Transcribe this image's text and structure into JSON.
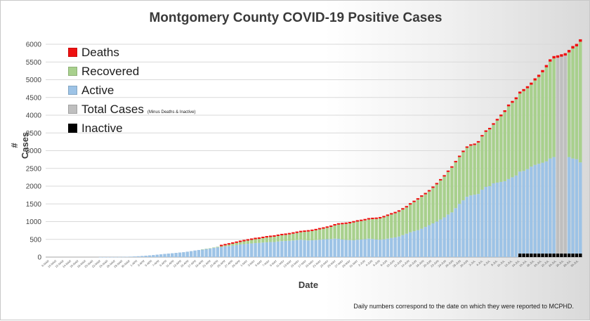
{
  "chart_data": {
    "type": "bar",
    "stacked": true,
    "title": "Montgomery County COVID-19 Positive Cases",
    "xlabel": "Date",
    "ylabel": "# Cases",
    "ylim": [
      0,
      6000
    ],
    "yticks": [
      "0",
      "500",
      "1000",
      "1500",
      "2000",
      "2500",
      "3000",
      "3500",
      "4000",
      "4500",
      "5000",
      "5500",
      "6000"
    ],
    "grid": true,
    "legend_position": "top-left",
    "footnote": "Daily numbers correspond to the date on which they were reported to MCPHD.",
    "legend": [
      {
        "name": "Deaths",
        "color": "#ee1111"
      },
      {
        "name": "Recovered",
        "color": "#a8d08d"
      },
      {
        "name": "Active",
        "color": "#9dc3e6"
      },
      {
        "name": "Total Cases",
        "note": "(Minus Deaths & Inactive)",
        "color": "#bfbfbf"
      },
      {
        "name": "Inactive",
        "color": "#000000"
      }
    ],
    "category_labels": [
      "6-MAR",
      "10-MAR",
      "12-MAR",
      "14-MAR",
      "16-MAR",
      "18-MAR",
      "20-MAR",
      "22-MAR",
      "24-MAR",
      "26-MAR",
      "28-MAR",
      "30-MAR",
      "1-APR",
      "3-APR",
      "5-APR",
      "7-APR",
      "9-APR",
      "11-APR",
      "13-APR",
      "15-APR",
      "17-APR",
      "19-APR",
      "21-APR",
      "23-APR",
      "25-APR",
      "27-APR",
      "29-APR",
      "1-MAY",
      "3-MAY",
      "5-MAY",
      "7-MAY",
      "9-MAY",
      "11-MAY",
      "13-MAY",
      "15-MAY",
      "17-MAY",
      "19-MAY",
      "21-MAY",
      "23-MAY",
      "25-MAY",
      "27-MAY",
      "29-MAY",
      "31-MAY",
      "2-JUN",
      "4-JUN",
      "6-JUN",
      "8-JUN",
      "10-JUN",
      "12-JUN",
      "14-JUN",
      "16-JUN",
      "18-JUN",
      "20-JUN",
      "22-JUN",
      "24-JUN",
      "26-JUN",
      "28-JUN",
      "30-JUN",
      "2-JUL",
      "4-JUL",
      "6-JUL",
      "8-JUL",
      "10-JUL",
      "12-JUL",
      "14-JUL",
      "16-JUL",
      "18-JUL",
      "20-JUL",
      "22-JUL",
      "24-JUL",
      "26-JUL",
      "28-JUL",
      "30-JUL"
    ],
    "series": [
      {
        "name": "Active",
        "values": [
          0,
          0,
          0,
          0,
          0,
          0,
          0,
          0,
          0,
          0,
          0,
          0,
          0,
          0,
          1,
          1,
          2,
          2,
          3,
          4,
          6,
          9,
          13,
          18,
          24,
          31,
          39,
          48,
          57,
          68,
          78,
          89,
          99,
          108,
          118,
          128,
          138,
          152,
          168,
          185,
          200,
          215,
          230,
          240,
          260,
          275,
          285,
          300,
          312,
          325,
          340,
          355,
          365,
          375,
          385,
          395,
          400,
          410,
          418,
          425,
          425,
          440,
          450,
          455,
          460,
          470,
          480,
          490,
          480,
          470,
          475,
          480,
          490,
          500,
          505,
          510,
          520,
          515,
          495,
          485,
          480,
          475,
          490,
          495,
          505,
          520,
          510,
          495,
          490,
          500,
          520,
          540,
          555,
          580,
          620,
          660,
          700,
          730,
          760,
          800,
          850,
          900,
          950,
          1000,
          1060,
          1120,
          1200,
          1260,
          1380,
          1500,
          1600,
          1700,
          1740,
          1760,
          1780,
          1900,
          1980,
          2000,
          2080,
          2100,
          2120,
          2140,
          2200,
          2250,
          2300,
          2310,
          2330,
          2380,
          2450,
          2500,
          2530,
          2560,
          2600,
          2680,
          2720,
          0,
          0,
          0,
          2720,
          2680,
          2660,
          2570
        ]
      },
      {
        "name": "Recovered",
        "values": [
          0,
          0,
          0,
          0,
          0,
          0,
          0,
          0,
          0,
          0,
          0,
          0,
          0,
          0,
          0,
          0,
          0,
          0,
          0,
          0,
          0,
          0,
          0,
          0,
          0,
          0,
          0,
          0,
          0,
          0,
          0,
          0,
          0,
          0,
          0,
          0,
          0,
          0,
          0,
          0,
          0,
          2,
          4,
          8,
          12,
          16,
          22,
          30,
          40,
          50,
          60,
          70,
          80,
          90,
          100,
          110,
          115,
          125,
          135,
          140,
          150,
          155,
          165,
          170,
          180,
          190,
          200,
          210,
          230,
          250,
          260,
          275,
          290,
          300,
          320,
          340,
          370,
          400,
          430,
          450,
          470,
          500,
          510,
          520,
          530,
          540,
          560,
          580,
          600,
          620,
          640,
          660,
          680,
          700,
          720,
          740,
          780,
          820,
          860,
          900,
          920,
          950,
          1000,
          1050,
          1100,
          1150,
          1200,
          1260,
          1290,
          1320,
          1360,
          1380,
          1400,
          1400,
          1450,
          1500,
          1550,
          1600,
          1650,
          1750,
          1850,
          1950,
          2050,
          2100,
          2150,
          2200,
          2250,
          2280,
          2310,
          2380,
          2450,
          2550,
          2650,
          2730,
          2780,
          0,
          0,
          0,
          2950,
          3100,
          3180,
          3400
        ]
      },
      {
        "name": "Total Cases",
        "values": [
          0,
          0,
          0,
          0,
          0,
          0,
          0,
          0,
          0,
          0,
          0,
          0,
          0,
          0,
          0,
          0,
          0,
          0,
          0,
          0,
          0,
          0,
          0,
          0,
          0,
          0,
          0,
          0,
          0,
          0,
          0,
          0,
          0,
          0,
          0,
          0,
          0,
          0,
          0,
          0,
          0,
          0,
          0,
          0,
          0,
          0,
          0,
          0,
          0,
          0,
          0,
          0,
          0,
          0,
          0,
          0,
          0,
          0,
          0,
          0,
          0,
          0,
          0,
          0,
          0,
          0,
          0,
          0,
          0,
          0,
          0,
          0,
          0,
          0,
          0,
          0,
          0,
          0,
          0,
          0,
          0,
          0,
          0,
          0,
          0,
          0,
          0,
          0,
          0,
          0,
          0,
          0,
          0,
          0,
          0,
          0,
          0,
          0,
          0,
          0,
          0,
          0,
          0,
          0,
          0,
          0,
          0,
          0,
          0,
          0,
          0,
          0,
          0,
          0,
          0,
          0,
          0,
          0,
          0,
          0,
          0,
          0,
          0,
          0,
          0,
          0,
          0,
          0,
          0,
          0,
          0,
          0,
          0,
          0,
          0,
          5520,
          5550,
          5580,
          0,
          0,
          0,
          0
        ]
      },
      {
        "name": "Inactive",
        "values": [
          0,
          0,
          0,
          0,
          0,
          0,
          0,
          0,
          0,
          0,
          0,
          0,
          0,
          0,
          0,
          0,
          0,
          0,
          0,
          0,
          0,
          0,
          0,
          0,
          0,
          0,
          0,
          0,
          0,
          0,
          0,
          0,
          0,
          0,
          0,
          0,
          0,
          0,
          0,
          0,
          0,
          0,
          0,
          0,
          0,
          0,
          0,
          0,
          0,
          0,
          0,
          0,
          0,
          0,
          0,
          0,
          0,
          0,
          0,
          0,
          0,
          0,
          0,
          0,
          0,
          0,
          0,
          0,
          0,
          0,
          0,
          0,
          0,
          0,
          0,
          0,
          0,
          0,
          0,
          0,
          0,
          0,
          0,
          0,
          0,
          0,
          0,
          0,
          0,
          0,
          0,
          0,
          0,
          0,
          0,
          0,
          0,
          0,
          0,
          0,
          0,
          0,
          0,
          0,
          0,
          0,
          0,
          0,
          0,
          0,
          0,
          0,
          0,
          0,
          0,
          0,
          0,
          0,
          0,
          0,
          0,
          0,
          0,
          0,
          0,
          100,
          100,
          100,
          100,
          100,
          100,
          100,
          100,
          100,
          100,
          100,
          100,
          100,
          100,
          100,
          100,
          100,
          100,
          100,
          100
        ]
      },
      {
        "name": "Deaths",
        "values": [
          0,
          0,
          0,
          0,
          0,
          0,
          0,
          0,
          0,
          0,
          0,
          0,
          0,
          0,
          0,
          0,
          0,
          0,
          0,
          0,
          0,
          0,
          0,
          0,
          0,
          0,
          0,
          0,
          0,
          0,
          0,
          0,
          0,
          0,
          0,
          0,
          0,
          0,
          0,
          0,
          0,
          0,
          0,
          0,
          0,
          0,
          0,
          0,
          0,
          0,
          0,
          0,
          0,
          0,
          0,
          0,
          0,
          0,
          0,
          0,
          0,
          0,
          0,
          0,
          0,
          0,
          0,
          0,
          0,
          0,
          0,
          0,
          0,
          0,
          0,
          0,
          0,
          0,
          0,
          0,
          0,
          0,
          0,
          0,
          0,
          0,
          0,
          0,
          0,
          0,
          0,
          0,
          0,
          0,
          0,
          0,
          0,
          0,
          0,
          0,
          0,
          0,
          0,
          0,
          0,
          0,
          0,
          0,
          0,
          0,
          0,
          0,
          0,
          0,
          0,
          0,
          0,
          0,
          0,
          0,
          0,
          0,
          0,
          0,
          0,
          0,
          0,
          0,
          0,
          0,
          0,
          0,
          0,
          0,
          0,
          0,
          0,
          0,
          0,
          0,
          0,
          0,
          0,
          0,
          0
        ]
      }
    ]
  }
}
